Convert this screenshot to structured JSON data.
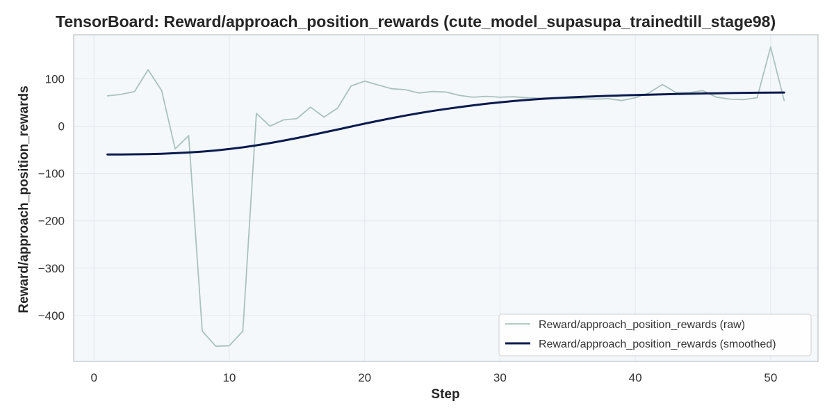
{
  "chart_data": {
    "type": "line",
    "title": "TensorBoard: Reward/approach_position_rewards (cute_model_supasupa_trainedtill_stage98)",
    "xlabel": "Step",
    "ylabel": "Reward/approach_position_rewards",
    "xlim": [
      -1.5,
      53.5
    ],
    "ylim": [
      -497,
      193
    ],
    "xticks": [
      0,
      10,
      20,
      30,
      40,
      50
    ],
    "yticks": [
      -400,
      -300,
      -200,
      -100,
      0,
      100
    ],
    "ytick_labels": [
      "−400",
      "−300",
      "−200",
      "−100",
      "0",
      "100"
    ],
    "grid": true,
    "legend_position": "lower-right",
    "x": [
      1,
      2,
      3,
      4,
      5,
      6,
      7,
      8,
      9,
      10,
      11,
      12,
      13,
      14,
      15,
      16,
      17,
      18,
      19,
      20,
      21,
      22,
      23,
      24,
      25,
      26,
      27,
      28,
      29,
      30,
      31,
      32,
      33,
      34,
      35,
      36,
      37,
      38,
      39,
      40,
      41,
      42,
      43,
      44,
      45,
      46,
      47,
      48,
      49,
      50,
      51
    ],
    "series": [
      {
        "name": "Reward/approach_position_rewards (raw)",
        "color": "#a9c2bc",
        "values": [
          64,
          67,
          73,
          119,
          75,
          -48,
          -20,
          -433,
          -465,
          -464,
          -433,
          27,
          0,
          13,
          16,
          40,
          19,
          38,
          85,
          95,
          87,
          79,
          77,
          70,
          73,
          72,
          65,
          61,
          63,
          61,
          62,
          60,
          59,
          60,
          59,
          58,
          57,
          58,
          54,
          60,
          70,
          88,
          71,
          71,
          75,
          61,
          57,
          56,
          60,
          167,
          54
        ]
      },
      {
        "name": "Reward/approach_position_rewards (smoothed)",
        "color": "#0a1a4d",
        "values": [
          -60,
          -59.8,
          -59.5,
          -59,
          -58.3,
          -57.2,
          -55.7,
          -53.8,
          -51.4,
          -48.4,
          -44.9,
          -40.6,
          -35.9,
          -30.7,
          -25.1,
          -19.3,
          -13.3,
          -7.2,
          -1,
          5.2,
          11.1,
          16.8,
          22.2,
          27.3,
          32,
          36.2,
          40.2,
          43.9,
          47.3,
          50.3,
          53,
          55.3,
          57.3,
          59,
          60.5,
          61.8,
          63,
          64,
          64.9,
          65.7,
          66.4,
          67.1,
          67.7,
          68.3,
          68.9,
          69.4,
          69.8,
          70.2,
          70.5,
          70.8,
          71
        ]
      }
    ]
  }
}
